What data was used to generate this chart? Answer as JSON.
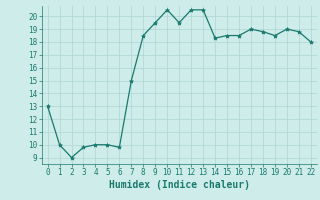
{
  "x": [
    0,
    1,
    2,
    3,
    4,
    5,
    6,
    7,
    8,
    9,
    10,
    11,
    12,
    13,
    14,
    15,
    16,
    17,
    18,
    19,
    20,
    21,
    22
  ],
  "y": [
    13,
    10,
    9,
    9.8,
    10,
    10,
    9.8,
    15,
    18.5,
    19.5,
    20.5,
    19.5,
    20.5,
    20.5,
    18.3,
    18.5,
    18.5,
    19,
    18.8,
    18.5,
    19,
    18.8,
    18
  ],
  "line_color": "#1a7a6e",
  "marker": "*",
  "marker_size": 3,
  "bg_color": "#ceecea",
  "grid_color": "#aed4d2",
  "xlabel": "Humidex (Indice chaleur)",
  "xlim": [
    -0.5,
    22.5
  ],
  "ylim": [
    8.5,
    20.8
  ],
  "yticks": [
    9,
    10,
    11,
    12,
    13,
    14,
    15,
    16,
    17,
    18,
    19,
    20
  ],
  "xticks": [
    0,
    1,
    2,
    3,
    4,
    5,
    6,
    7,
    8,
    9,
    10,
    11,
    12,
    13,
    14,
    15,
    16,
    17,
    18,
    19,
    20,
    21,
    22
  ],
  "tick_label_fontsize": 5.5,
  "xlabel_fontsize": 7,
  "line_width": 0.9
}
